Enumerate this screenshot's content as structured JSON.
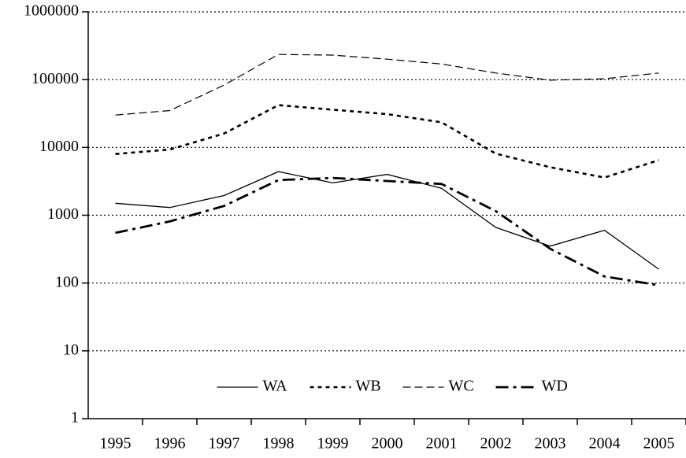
{
  "chart_data": {
    "type": "line",
    "categories": [
      "1995",
      "1996",
      "1997",
      "1998",
      "1999",
      "2000",
      "2001",
      "2002",
      "2003",
      "2004",
      "2005"
    ],
    "series": [
      {
        "name": "WA",
        "color": "#000000",
        "style": "solid",
        "values": [
          1500,
          1300,
          1950,
          4400,
          3000,
          4000,
          2500,
          660,
          350,
          600,
          160
        ]
      },
      {
        "name": "WB",
        "color": "#000000",
        "style": "dotted",
        "values": [
          8000,
          9300,
          16000,
          42000,
          36000,
          31000,
          23500,
          8100,
          5100,
          3600,
          6500
        ]
      },
      {
        "name": "WC",
        "color": "#000000",
        "style": "dashed",
        "values": [
          30000,
          35000,
          83000,
          235000,
          230000,
          200000,
          170000,
          125000,
          98000,
          103000,
          125000
        ]
      },
      {
        "name": "WD",
        "color": "#000000",
        "style": "dashdot",
        "values": [
          550,
          810,
          1370,
          3300,
          3550,
          3200,
          2900,
          1150,
          320,
          125,
          93
        ]
      }
    ],
    "yscale": "log",
    "ylim": [
      1,
      1000000
    ],
    "yticks": [
      1,
      10,
      100,
      1000,
      10000,
      100000,
      1000000
    ],
    "grid": true,
    "legend": "lower center"
  }
}
